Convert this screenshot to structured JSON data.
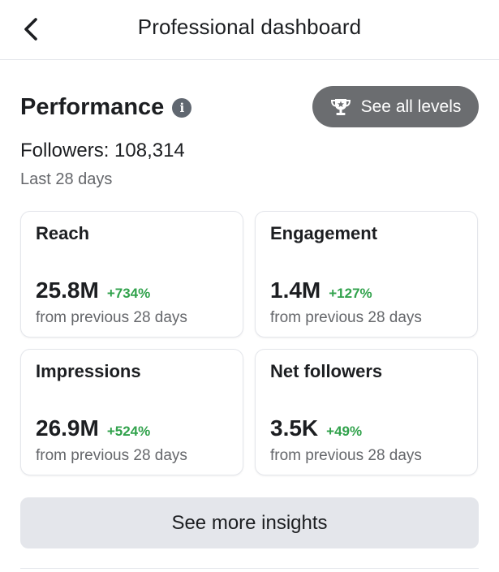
{
  "header": {
    "title": "Professional dashboard",
    "back_icon": "chevron-left-icon"
  },
  "performance": {
    "title": "Performance",
    "info_icon": "info-icon",
    "levels_button": {
      "label": "See all levels",
      "icon": "trophy-icon"
    },
    "followers_text": "Followers: 108,314",
    "period": "Last 28 days"
  },
  "cards": [
    {
      "title": "Reach",
      "value": "25.8M",
      "change": "+734%",
      "sub": "from previous 28 days"
    },
    {
      "title": "Engagement",
      "value": "1.4M",
      "change": "+127%",
      "sub": "from previous 28 days"
    },
    {
      "title": "Impressions",
      "value": "26.9M",
      "change": "+524%",
      "sub": "from previous 28 days"
    },
    {
      "title": "Net followers",
      "value": "3.5K",
      "change": "+49%",
      "sub": "from previous 28 days"
    }
  ],
  "insights_button": {
    "label": "See more insights"
  },
  "colors": {
    "positive_change": "#31a24c",
    "levels_button_bg": "#6b6d70",
    "insights_button_bg": "#e4e6eb"
  }
}
